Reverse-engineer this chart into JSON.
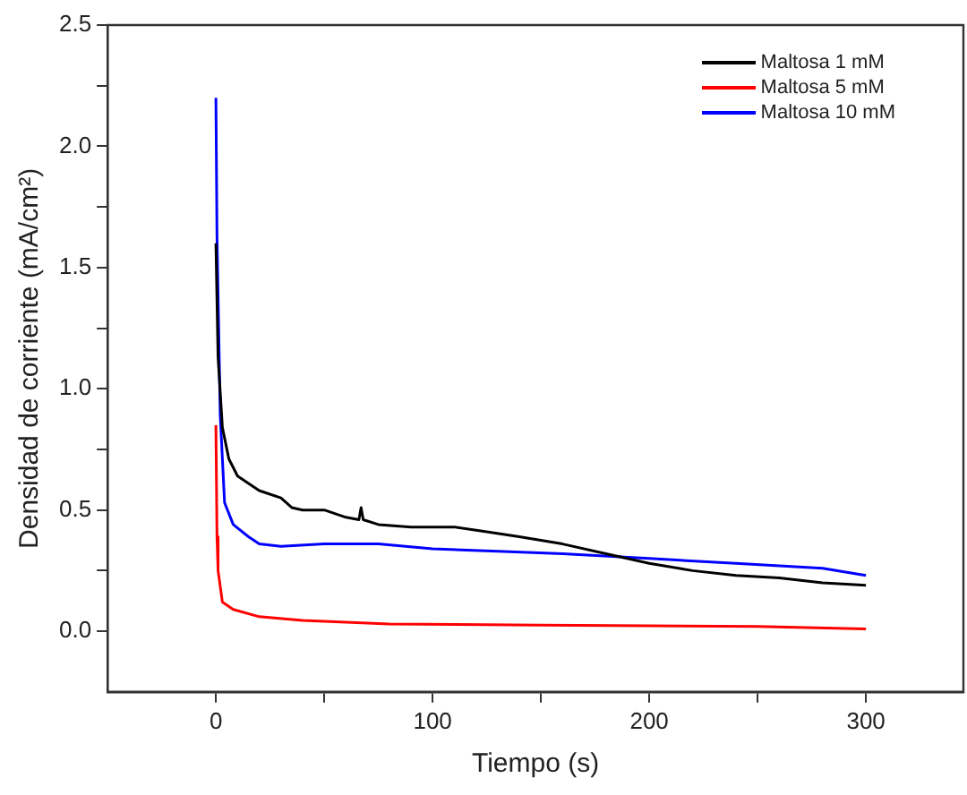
{
  "chart_data": {
    "type": "line",
    "xlabel": "Tiempo (s)",
    "ylabel": "Densidad de corriente (mA/cm²)",
    "xlim": [
      -50,
      345
    ],
    "ylim": [
      -0.25,
      2.5
    ],
    "xticks": [
      0,
      {
        "value": 50,
        "label": null
      },
      100,
      {
        "value": 150,
        "label": null
      },
      200,
      {
        "value": 250,
        "label": null
      },
      300
    ],
    "yticks": [
      {
        "value": 0,
        "label": "0.0"
      },
      {
        "value": 0.25,
        "label": null
      },
      {
        "value": 0.5,
        "label": "0.5"
      },
      {
        "value": 0.75,
        "label": null
      },
      {
        "value": 1,
        "label": "1.0"
      },
      {
        "value": 1.25,
        "label": null
      },
      {
        "value": 1.5,
        "label": "1.5"
      },
      {
        "value": 1.75,
        "label": null
      },
      {
        "value": 2,
        "label": "2.0"
      },
      {
        "value": 2.25,
        "label": null
      },
      {
        "value": 2.5,
        "label": "2.5"
      }
    ],
    "grid": false,
    "legend": "top right",
    "marker": "none",
    "line_style": "solid",
    "series": [
      {
        "name": "Maltosa 1 mM",
        "color": "#000000",
        "x": [
          0,
          1,
          3,
          6,
          10,
          20,
          30,
          35,
          40,
          50,
          60,
          66,
          67,
          68,
          75,
          90,
          110,
          125,
          140,
          160,
          180,
          200,
          220,
          240,
          260,
          280,
          300
        ],
        "values": [
          1.6,
          1.13,
          0.84,
          0.71,
          0.64,
          0.58,
          0.55,
          0.51,
          0.5,
          0.5,
          0.47,
          0.46,
          0.51,
          0.46,
          0.44,
          0.43,
          0.43,
          0.41,
          0.39,
          0.36,
          0.32,
          0.28,
          0.25,
          0.23,
          0.22,
          0.2,
          0.19
        ]
      },
      {
        "name": "Maltosa 5 mM",
        "color": "#ff0000",
        "x": [
          0,
          0.5,
          1,
          3,
          8,
          20,
          40,
          80,
          150,
          250,
          300
        ],
        "values": [
          0.85,
          0.39,
          0.25,
          0.12,
          0.09,
          0.06,
          0.045,
          0.03,
          0.025,
          0.02,
          0.01
        ]
      },
      {
        "name": "Maltosa 10 mM",
        "color": "#0000ff",
        "x": [
          0,
          0.5,
          2,
          4,
          8,
          15,
          20,
          30,
          50,
          75,
          100,
          130,
          160,
          200,
          240,
          280,
          300
        ],
        "values": [
          2.2,
          1.63,
          0.89,
          0.53,
          0.44,
          0.39,
          0.36,
          0.35,
          0.36,
          0.36,
          0.34,
          0.33,
          0.32,
          0.3,
          0.28,
          0.26,
          0.23
        ]
      }
    ]
  }
}
